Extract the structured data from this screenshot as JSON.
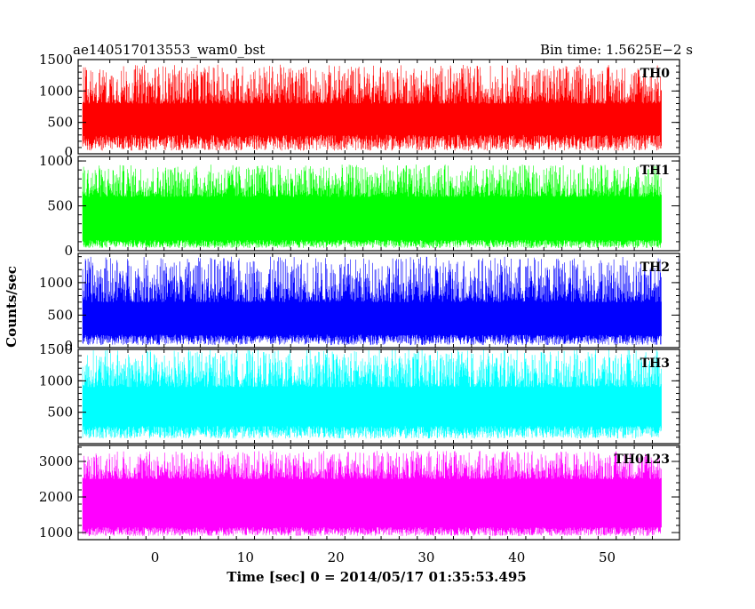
{
  "title_left": "ae140517013553_wam0_bst",
  "title_right": "Bin time: 1.5625E−2 s",
  "xlabel": "Time [sec] 0 = 2014/05/17 01:35:53.495",
  "ylabel": "Counts/sec",
  "chart_data": {
    "type": "line",
    "xlim": [
      -8.5,
      58
    ],
    "x_ticks": [
      0,
      10,
      20,
      30,
      40,
      50
    ],
    "x_tick_labels": [
      "0",
      "10",
      "20",
      "30",
      "40",
      "50"
    ],
    "x_data_range": [
      -8,
      56
    ],
    "bin_time": 0.015625,
    "series": [
      {
        "name": "TH0",
        "color": "#ff0000",
        "ylim": [
          0,
          1500
        ],
        "y_ticks": [
          500,
          1000,
          1500
        ],
        "y_tick_labels": [
          "500",
          "1000",
          "1500"
        ],
        "bottom_label": "0",
        "range_low": [
          50,
          300
        ],
        "range_high": [
          800,
          1420
        ]
      },
      {
        "name": "TH1",
        "color": "#00ff00",
        "ylim": [
          0,
          1050
        ],
        "y_ticks": [
          0,
          500,
          1000
        ],
        "y_tick_labels": [
          "0",
          "500",
          "1000"
        ],
        "bottom_label": "",
        "range_low": [
          30,
          120
        ],
        "range_high": [
          600,
          960
        ]
      },
      {
        "name": "TH2",
        "color": "#0000ff",
        "ylim": [
          0,
          1450
        ],
        "y_ticks": [
          500,
          1000
        ],
        "y_tick_labels": [
          "500",
          "1000"
        ],
        "bottom_label": "0",
        "range_low": [
          40,
          200
        ],
        "range_high": [
          700,
          1400
        ]
      },
      {
        "name": "TH3",
        "color": "#00ffff",
        "ylim": [
          0,
          1500
        ],
        "y_ticks": [
          500,
          1000,
          1500
        ],
        "y_tick_labels": [
          "500",
          "1000",
          "1500"
        ],
        "bottom_label": "",
        "range_low": [
          80,
          280
        ],
        "range_high": [
          900,
          1500
        ]
      },
      {
        "name": "TH0123",
        "color": "#ff00ff",
        "ylim": [
          800,
          3450
        ],
        "y_ticks": [
          1000,
          2000,
          3000
        ],
        "y_tick_labels": [
          "1000",
          "2000",
          "3000"
        ],
        "bottom_label": "",
        "range_low": [
          900,
          1150
        ],
        "range_high": [
          2500,
          3300
        ]
      }
    ]
  }
}
